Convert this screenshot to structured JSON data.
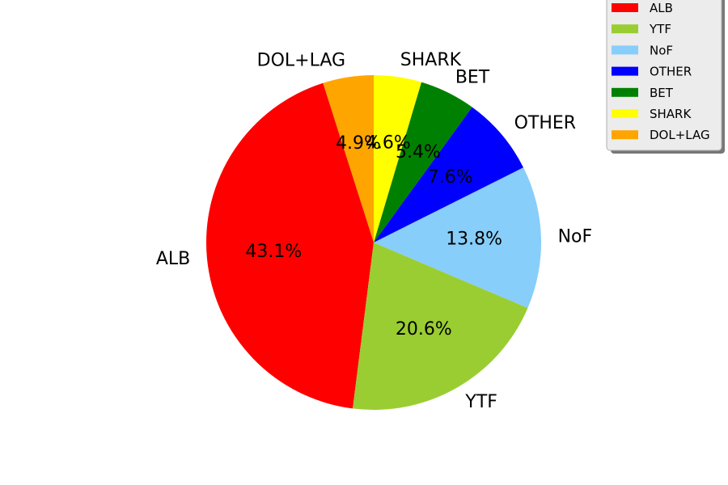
{
  "chart_data": {
    "type": "pie",
    "start_angle_deg": 90,
    "direction": "counterclockwise",
    "categories": [
      "DOL+LAG",
      "ALB",
      "YTF",
      "NoF",
      "OTHER",
      "BET",
      "SHARK"
    ],
    "values": [
      4.9,
      43.1,
      20.6,
      13.8,
      7.6,
      5.4,
      4.6
    ],
    "value_labels": [
      "4.9%",
      "43.1%",
      "20.6%",
      "13.8%",
      "7.6%",
      "5.4%",
      "4.6%"
    ],
    "colors": [
      "#ffa500",
      "#ff0000",
      "#9acd32",
      "#87cefa",
      "#0000ff",
      "#008000",
      "#ffff00"
    ],
    "legend": {
      "placement": "top-right",
      "entries": [
        {
          "label": "ALB",
          "color": "#ff0000"
        },
        {
          "label": "YTF",
          "color": "#9acd32"
        },
        {
          "label": "NoF",
          "color": "#87cefa"
        },
        {
          "label": "OTHER",
          "color": "#0000ff"
        },
        {
          "label": "BET",
          "color": "#008000"
        },
        {
          "label": "SHARK",
          "color": "#ffff00"
        },
        {
          "label": "DOL+LAG",
          "color": "#ffa500"
        }
      ]
    }
  }
}
